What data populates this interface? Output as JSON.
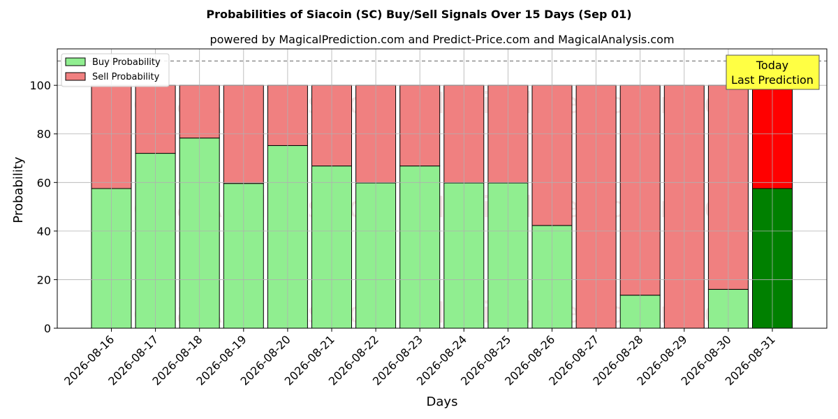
{
  "chart_data": {
    "type": "bar",
    "stacked": true,
    "title": "Probabilities of Siacoin (SC) Buy/Sell Signals Over 15 Days (Sep 01)",
    "subtitle": "powered by MagicalPrediction.com and Predict-Price.com and MagicalAnalysis.com",
    "xlabel": "Days",
    "ylabel": "Probability",
    "ylim": [
      0,
      115
    ],
    "yticks": [
      0,
      20,
      40,
      60,
      80,
      100
    ],
    "grid": true,
    "legend_position": "top-left",
    "reference_line": 110,
    "categories": [
      "2026-08-16",
      "2026-08-17",
      "2026-08-18",
      "2026-08-19",
      "2026-08-20",
      "2026-08-21",
      "2026-08-22",
      "2026-08-23",
      "2026-08-24",
      "2026-08-25",
      "2026-08-26",
      "2026-08-27",
      "2026-08-28",
      "2026-08-29",
      "2026-08-30",
      "2026-08-31"
    ],
    "series": [
      {
        "name": "Buy Probability",
        "color": "#90ee90",
        "highlight_color": "#008000",
        "values": [
          57.5,
          72,
          78.3,
          59.6,
          75.2,
          66.8,
          59.8,
          66.8,
          59.8,
          59.8,
          42.3,
          0,
          13.6,
          0,
          16,
          57.5
        ]
      },
      {
        "name": "Sell Probability",
        "color": "#f08080",
        "highlight_color": "#ff0000",
        "values": [
          42.5,
          28,
          21.7,
          40.4,
          24.8,
          33.2,
          40.2,
          33.2,
          40.2,
          40.2,
          57.7,
          100,
          86.4,
          100,
          84,
          42.5
        ]
      }
    ],
    "annotation": {
      "lines": [
        "Today",
        "Last Prediction"
      ],
      "color": "#ffff44"
    },
    "watermarks": [
      "MagicalAnalysis.com",
      "MagicalPrediction.com"
    ]
  }
}
